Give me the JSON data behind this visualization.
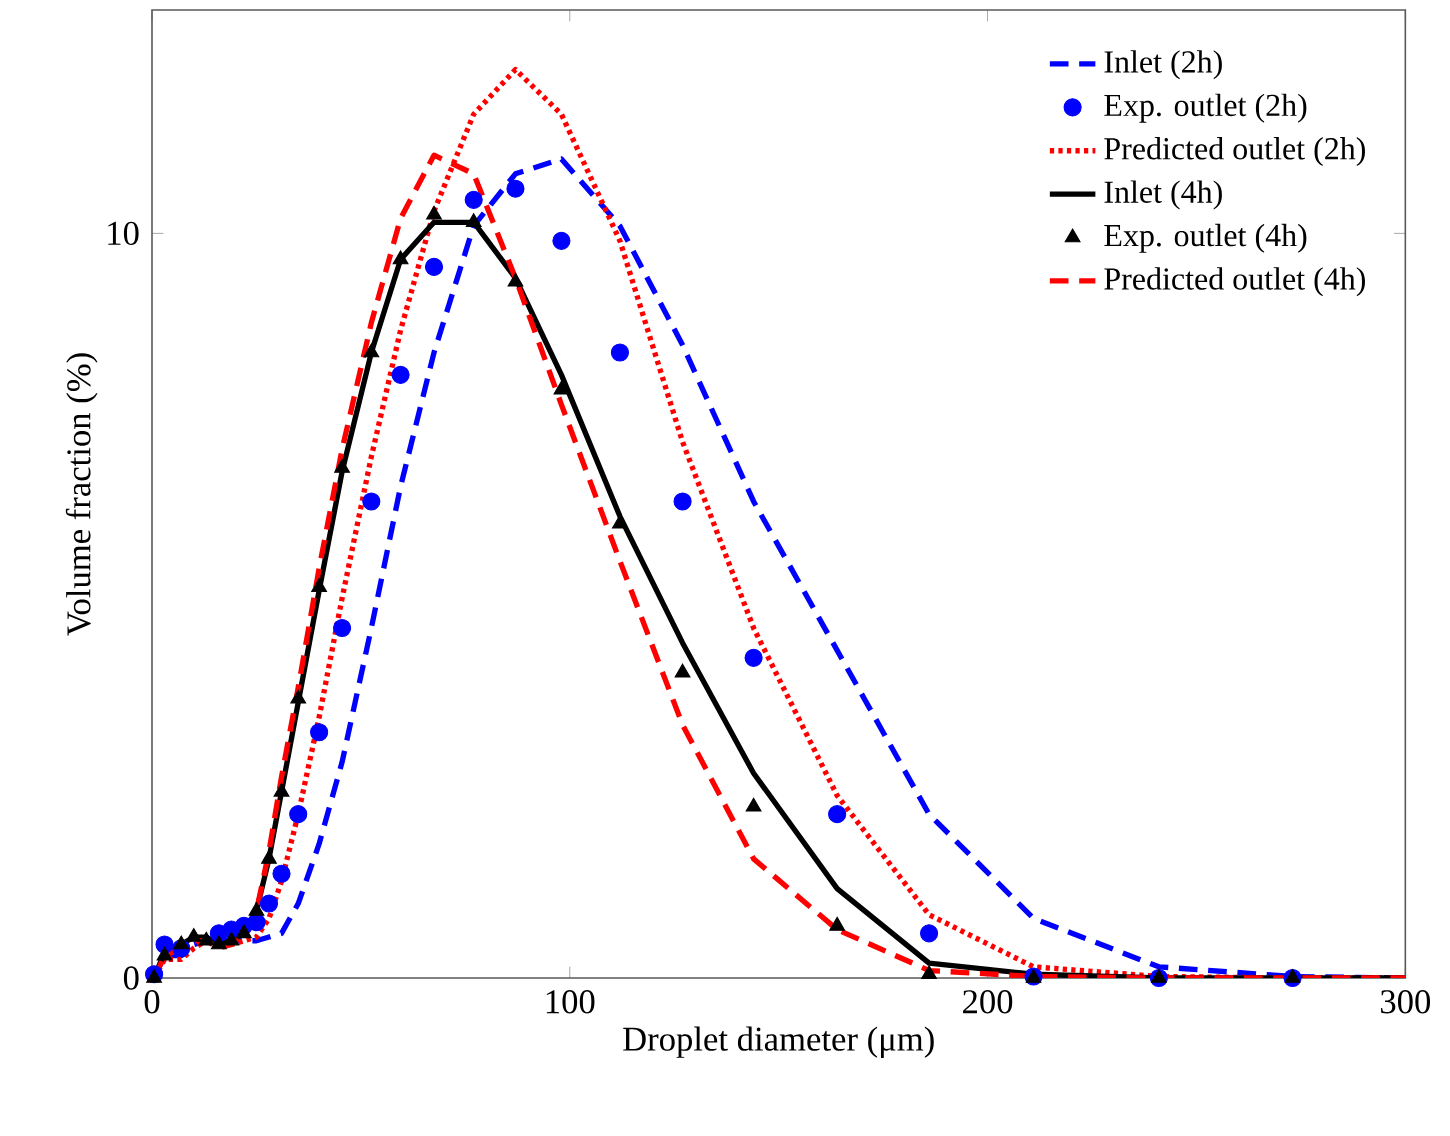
{
  "chart_data": {
    "type": "line",
    "xlabel": "Droplet diameter (μm)",
    "ylabel": "Volume fraction (%)",
    "xlim": [
      0,
      300
    ],
    "ylim": [
      0,
      13
    ],
    "xticks": [
      0,
      100,
      200,
      300
    ],
    "yticks": [
      0,
      10
    ],
    "grid": false,
    "legend": "top right",
    "series": [
      {
        "name": "Inlet (2h)",
        "color": "#0000ff",
        "line_style": "dashed",
        "marker": "none",
        "x": [
          0.5,
          3,
          7,
          10,
          13,
          16,
          19,
          22,
          25,
          28,
          31,
          35,
          40,
          45.5,
          52.5,
          59.5,
          67.5,
          77,
          87,
          98,
          112,
          127,
          144,
          164,
          186,
          211,
          241,
          273,
          300
        ],
        "values": [
          0,
          0.3,
          0.3,
          0.45,
          0.5,
          0.5,
          0.5,
          0.5,
          0.5,
          0.55,
          0.6,
          1.0,
          1.8,
          2.9,
          4.7,
          6.6,
          8.4,
          10.1,
          10.8,
          11.0,
          10.1,
          8.5,
          6.4,
          4.4,
          2.2,
          0.8,
          0.15,
          0.02,
          0
        ]
      },
      {
        "name": "Exp. outlet (2h)",
        "type": "scatter",
        "color": "#0000ff",
        "marker": "circle",
        "x": [
          0.5,
          3,
          7,
          10,
          13,
          16,
          19,
          22,
          25,
          28,
          31,
          35,
          40,
          45.5,
          52.5,
          59.5,
          67.5,
          77,
          87,
          98,
          112,
          127,
          144,
          164,
          186,
          211,
          241,
          273
        ],
        "values": [
          0.05,
          0.45,
          0.4,
          null,
          null,
          0.6,
          0.65,
          0.7,
          0.75,
          1.0,
          1.4,
          2.2,
          3.3,
          4.7,
          6.4,
          8.1,
          9.55,
          10.45,
          10.6,
          9.9,
          8.4,
          6.4,
          4.3,
          2.2,
          0.6,
          0.02,
          0,
          0
        ]
      },
      {
        "name": "Predicted outlet (2h)",
        "color": "#ff0000",
        "line_style": "dotted",
        "marker": "none",
        "x": [
          0.5,
          3,
          7,
          10,
          13,
          16,
          19,
          22,
          25,
          28,
          31,
          35,
          40,
          45.5,
          52.5,
          59.5,
          67.5,
          77,
          87,
          98,
          112,
          127,
          144,
          164,
          186,
          211,
          241,
          273,
          300
        ],
        "values": [
          0,
          0.25,
          0.25,
          0.4,
          0.5,
          0.45,
          0.45,
          0.5,
          0.55,
          0.8,
          1.3,
          2.2,
          3.5,
          5.1,
          7.0,
          8.7,
          10.3,
          11.6,
          12.2,
          11.6,
          9.9,
          7.2,
          4.7,
          2.45,
          0.85,
          0.15,
          0.02,
          0,
          0
        ]
      },
      {
        "name": "Inlet (4h)",
        "color": "#000000",
        "line_style": "solid",
        "marker": "none",
        "x": [
          0.5,
          3,
          7,
          10,
          13,
          16,
          19,
          22,
          25,
          28,
          31,
          35,
          40,
          45.5,
          52.5,
          59.5,
          67.5,
          77,
          87,
          98,
          112,
          127,
          144,
          164,
          186,
          211,
          241,
          273,
          300
        ],
        "values": [
          0,
          0.35,
          0.45,
          0.55,
          0.55,
          0.45,
          0.5,
          0.6,
          0.9,
          1.6,
          2.5,
          3.7,
          5.2,
          6.8,
          8.4,
          9.65,
          10.15,
          10.15,
          9.4,
          8.1,
          6.2,
          4.5,
          2.75,
          1.2,
          0.2,
          0.05,
          0,
          0,
          0
        ]
      },
      {
        "name": "Exp. outlet (4h)",
        "type": "scatter",
        "color": "#000000",
        "marker": "triangle",
        "x": [
          0.5,
          3,
          7,
          10,
          13,
          16,
          19,
          22,
          25,
          28,
          31,
          35,
          40,
          45.5,
          52.5,
          59.5,
          67.5,
          77,
          87,
          98,
          112,
          127,
          144,
          164,
          186,
          211,
          241,
          273
        ],
        "values": [
          0,
          0.3,
          0.45,
          0.55,
          0.5,
          0.45,
          0.5,
          0.6,
          0.9,
          1.6,
          2.5,
          3.75,
          5.25,
          6.85,
          8.4,
          9.65,
          10.25,
          10.15,
          9.35,
          7.9,
          6.1,
          4.1,
          2.3,
          0.7,
          0.05,
          0,
          0,
          0
        ]
      },
      {
        "name": "Predicted outlet (4h)",
        "color": "#ff0000",
        "line_style": "dashed",
        "marker": "none",
        "x": [
          0.5,
          3,
          7,
          10,
          13,
          16,
          19,
          22,
          25,
          28,
          31,
          35,
          40,
          45.5,
          52.5,
          59.5,
          67.5,
          77,
          87,
          98,
          112,
          127,
          144,
          164,
          186,
          211,
          241,
          273,
          300
        ],
        "values": [
          0,
          0.3,
          0.4,
          0.5,
          0.5,
          0.4,
          0.45,
          0.6,
          0.9,
          1.7,
          2.7,
          3.9,
          5.5,
          7.1,
          8.8,
          10.2,
          11.05,
          10.8,
          9.4,
          7.7,
          5.6,
          3.4,
          1.6,
          0.65,
          0.1,
          0.02,
          0,
          0,
          0
        ]
      }
    ]
  }
}
